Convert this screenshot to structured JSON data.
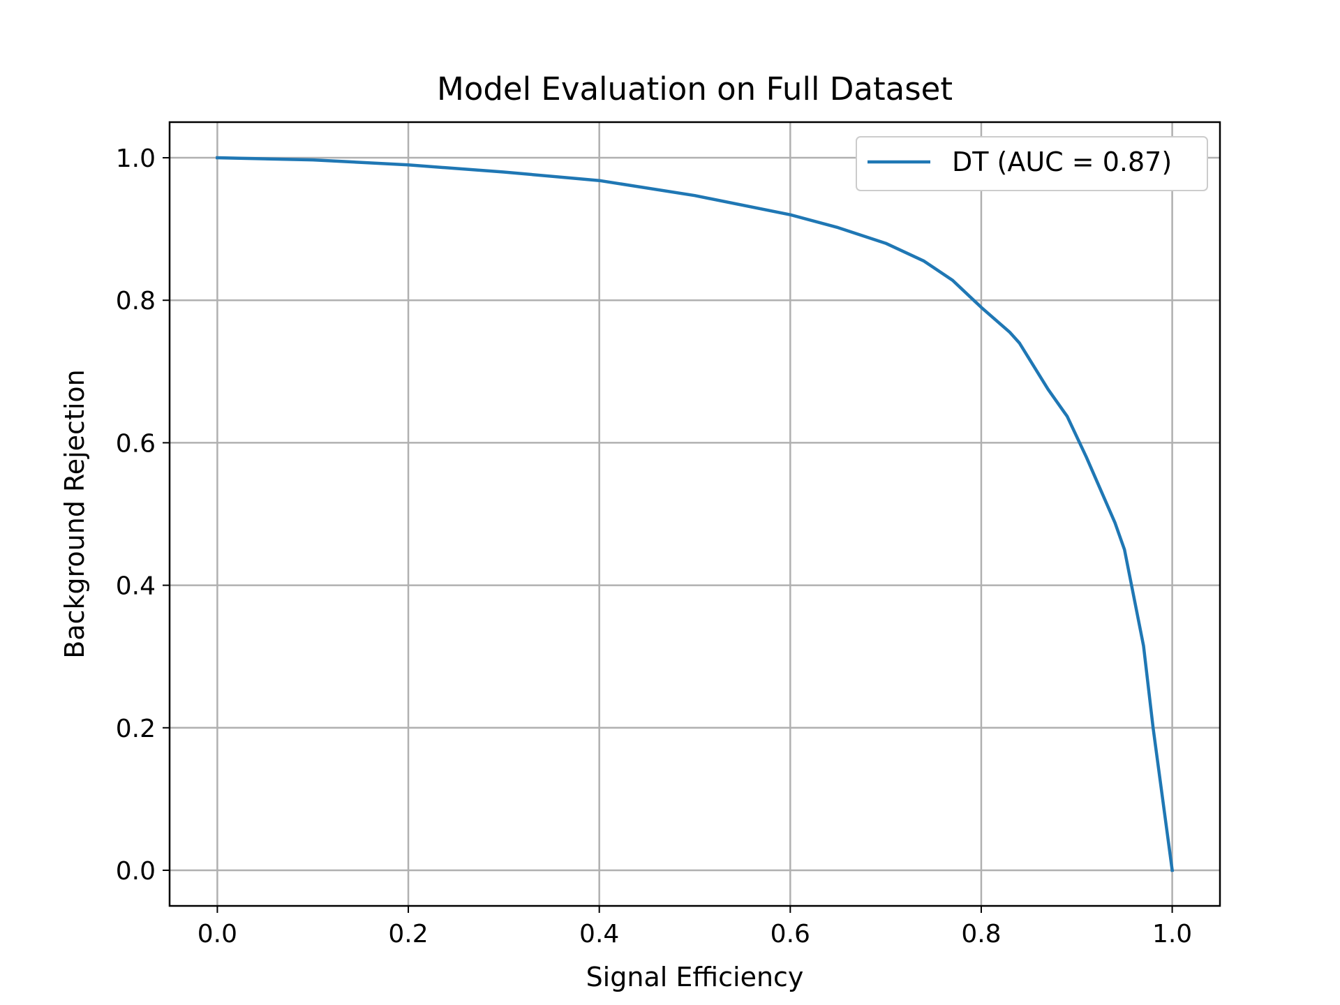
{
  "chart_data": {
    "type": "line",
    "title": "Model Evaluation on Full Dataset",
    "xlabel": "Signal Efficiency",
    "ylabel": "Background Rejection",
    "xlim": [
      -0.05,
      1.05
    ],
    "ylim": [
      -0.05,
      1.05
    ],
    "xticks": [
      "0.0",
      "0.2",
      "0.4",
      "0.6",
      "0.8",
      "1.0"
    ],
    "yticks": [
      "0.0",
      "0.2",
      "0.4",
      "0.6",
      "0.8",
      "1.0"
    ],
    "grid": true,
    "legend_position": "top-right",
    "series": [
      {
        "name": "DT (AUC = 0.87)",
        "color": "#1f77b4",
        "x": [
          0.0,
          0.1,
          0.2,
          0.3,
          0.4,
          0.5,
          0.6,
          0.65,
          0.7,
          0.74,
          0.77,
          0.8,
          0.83,
          0.84,
          0.87,
          0.89,
          0.91,
          0.94,
          0.95,
          0.97,
          0.98,
          0.99,
          1.0
        ],
        "y": [
          1.0,
          0.997,
          0.99,
          0.98,
          0.968,
          0.947,
          0.92,
          0.902,
          0.88,
          0.855,
          0.828,
          0.79,
          0.755,
          0.74,
          0.675,
          0.637,
          0.58,
          0.488,
          0.45,
          0.315,
          0.2,
          0.1,
          0.0
        ]
      }
    ]
  }
}
